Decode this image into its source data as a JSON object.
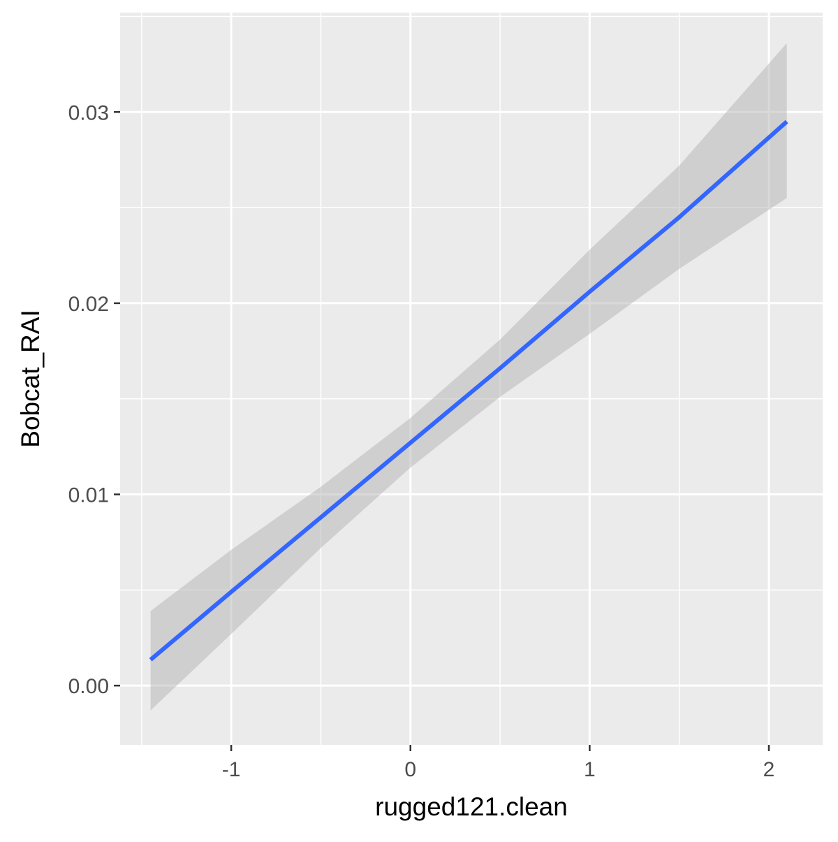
{
  "chart_data": {
    "type": "line",
    "title": "",
    "xlabel": "rugged121.clean",
    "ylabel": "Bobcat_RAI",
    "xlim": [
      -1.62,
      2.3
    ],
    "ylim": [
      -0.0031,
      0.0352
    ],
    "x_ticks": [
      -1,
      0,
      1,
      2
    ],
    "x_tick_labels": [
      "-1",
      "0",
      "1",
      "2"
    ],
    "x_minor_ticks": [
      -1.5,
      -0.5,
      0.5,
      1.5
    ],
    "y_ticks": [
      0,
      0.01,
      0.02,
      0.03
    ],
    "y_tick_labels": [
      "0.00",
      "0.01",
      "0.02",
      "0.03"
    ],
    "y_minor_ticks": [
      0.005,
      0.015,
      0.025,
      0.035
    ],
    "grid": true,
    "legend": "none",
    "series": [
      {
        "x": [
          -1.45,
          -1.0,
          -0.5,
          0.0,
          0.5,
          1.0,
          1.5,
          2.1
        ],
        "y": [
          0.00135,
          0.0049,
          0.0088,
          0.0127,
          0.0166,
          0.0206,
          0.0245,
          0.0295
        ],
        "ci_lower": [
          -0.0013,
          0.0027,
          0.0072,
          0.0114,
          0.0151,
          0.0184,
          0.0218,
          0.0255
        ],
        "ci_upper": [
          0.0039,
          0.0071,
          0.0104,
          0.014,
          0.0181,
          0.0228,
          0.0272,
          0.0336
        ]
      }
    ],
    "colors": {
      "line": "#3366ff",
      "ribbon": "#b3b3b3",
      "panel": "#ebebeb",
      "grid": "#ffffff"
    }
  }
}
